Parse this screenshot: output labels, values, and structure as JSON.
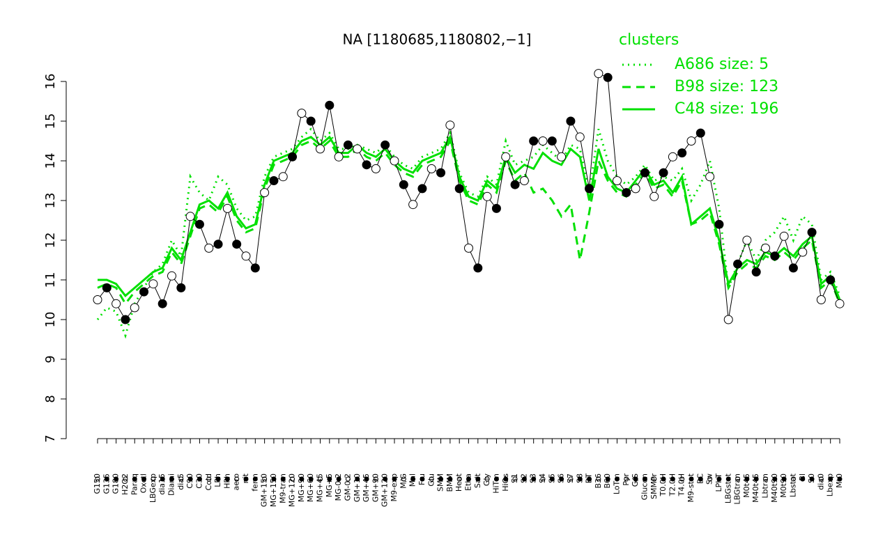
{
  "chart_data": {
    "type": "line",
    "title": "NA [1180685,1180802,−1]",
    "categories": [
      "G150",
      "G135",
      "G180",
      "H2O2",
      "Paraq",
      "Oxctl",
      "LBGexp",
      "dia15",
      "Diami",
      "dia5",
      "C90",
      "C30",
      "Cold",
      "LPh",
      "HPh",
      "aero",
      "nit",
      "ferm",
      "GM+150",
      "MG+150",
      "M9-tran",
      "MG+120",
      "MG+90",
      "MG+60",
      "MG+45",
      "MG+5",
      "MG-0.2",
      "GM-0.2",
      "GM+10",
      "GM+45",
      "GM+90",
      "GM+120",
      "M9-exp",
      "M/G",
      "Mal",
      "Fru",
      "Glu",
      "SMM",
      "BMM",
      "Heat",
      "Etha",
      "Salt",
      "Gly",
      "HiTm",
      "HiOs",
      "S1",
      "S2",
      "S3",
      "S4",
      "S5",
      "S6",
      "S7",
      "S8",
      "BT",
      "B36",
      "B60",
      "LoTm",
      "Pyr",
      "G/S",
      "Glucon",
      "SMMPr",
      "T0.0H",
      "T2.0H",
      "T4.0H",
      "M9-stat",
      "BC",
      "Sw",
      "LPhT",
      "LBGstat",
      "LBGtran",
      "M0t45",
      "M40t45",
      "Lbtran",
      "M40t90",
      "M0t90",
      "Lbstat",
      "Bl",
      "S0",
      "dia0",
      "Lbexp",
      "Mt0"
    ],
    "values": [
      10.5,
      10.8,
      10.4,
      10.0,
      10.3,
      10.7,
      10.9,
      10.4,
      11.1,
      10.8,
      12.6,
      12.4,
      11.8,
      11.9,
      12.8,
      11.9,
      11.6,
      11.3,
      13.2,
      13.5,
      13.6,
      14.1,
      15.2,
      15.0,
      14.3,
      15.4,
      14.1,
      14.4,
      14.3,
      13.9,
      13.8,
      14.4,
      14.0,
      13.4,
      12.9,
      13.3,
      13.8,
      13.7,
      14.9,
      13.3,
      11.8,
      11.3,
      13.1,
      12.8,
      14.1,
      13.4,
      13.5,
      14.5,
      14.5,
      14.5,
      14.1,
      15.0,
      14.6,
      13.3,
      16.2,
      16.1,
      13.5,
      13.2,
      13.3,
      13.7,
      13.1,
      13.7,
      14.1,
      14.2,
      14.5,
      14.7,
      13.6,
      12.4,
      10.0,
      11.4,
      12.0,
      11.2,
      11.8,
      11.6,
      12.1,
      11.3,
      11.7,
      12.2,
      10.5,
      11.0,
      10.4
    ],
    "legend_title": "clusters",
    "series": [
      {
        "name": "A686 size: 5",
        "color": "#00e000",
        "dash": "dotted",
        "values": [
          10.0,
          10.3,
          10.2,
          9.6,
          10.4,
          10.8,
          11.2,
          11.4,
          12.0,
          11.6,
          13.6,
          13.2,
          13.0,
          13.6,
          13.4,
          12.8,
          12.5,
          12.6,
          13.6,
          14.1,
          14.2,
          14.3,
          14.6,
          14.8,
          14.5,
          14.7,
          14.3,
          14.3,
          14.4,
          14.3,
          14.2,
          14.4,
          14.1,
          13.9,
          13.8,
          14.1,
          14.2,
          14.3,
          14.7,
          13.7,
          13.2,
          13.1,
          13.6,
          13.4,
          14.5,
          13.9,
          14.0,
          14.1,
          14.4,
          14.2,
          14.0,
          14.4,
          14.3,
          13.2,
          14.8,
          14.0,
          13.6,
          13.4,
          13.6,
          13.9,
          13.5,
          13.6,
          13.5,
          13.8,
          13.0,
          13.4,
          14.0,
          12.8,
          10.8,
          11.4,
          12.0,
          11.5,
          12.0,
          12.2,
          12.6,
          12.0,
          12.6,
          12.4,
          11.0,
          11.2,
          10.6
        ]
      },
      {
        "name": "B98 size: 123",
        "color": "#00e000",
        "dash": "dashed",
        "values": [
          10.8,
          10.9,
          10.8,
          10.4,
          10.7,
          10.9,
          11.1,
          11.2,
          11.7,
          11.4,
          12.1,
          12.8,
          12.9,
          12.7,
          13.1,
          12.5,
          12.2,
          12.3,
          13.3,
          13.9,
          14.0,
          14.1,
          14.4,
          14.5,
          14.3,
          14.5,
          14.1,
          14.1,
          14.3,
          14.1,
          14.0,
          14.2,
          13.9,
          13.7,
          13.6,
          13.9,
          14.0,
          14.1,
          14.5,
          13.5,
          13.0,
          12.9,
          13.4,
          13.2,
          14.0,
          13.5,
          13.7,
          13.2,
          13.3,
          13.0,
          12.6,
          12.9,
          11.5,
          12.7,
          14.0,
          13.5,
          13.2,
          13.1,
          13.4,
          13.7,
          13.3,
          13.4,
          13.1,
          13.5,
          12.4,
          12.5,
          12.7,
          11.9,
          10.8,
          11.2,
          11.4,
          11.3,
          11.6,
          11.5,
          11.7,
          11.5,
          11.8,
          12.0,
          10.8,
          11.0,
          10.4
        ]
      },
      {
        "name": "C48 size: 196",
        "color": "#00e000",
        "dash": "solid",
        "values": [
          11.0,
          11.0,
          10.9,
          10.6,
          10.8,
          11.0,
          11.2,
          11.3,
          11.8,
          11.5,
          12.2,
          12.9,
          13.0,
          12.8,
          13.2,
          12.6,
          12.3,
          12.4,
          13.4,
          14.0,
          14.1,
          14.2,
          14.5,
          14.6,
          14.4,
          14.6,
          14.2,
          14.2,
          14.4,
          14.2,
          14.1,
          14.3,
          14.0,
          13.8,
          13.7,
          14.0,
          14.1,
          14.2,
          14.6,
          13.6,
          13.1,
          13.0,
          13.5,
          13.3,
          14.1,
          13.7,
          13.9,
          13.8,
          14.2,
          14.0,
          13.9,
          14.3,
          14.1,
          13.0,
          14.3,
          13.6,
          13.3,
          13.2,
          13.5,
          13.8,
          13.4,
          13.5,
          13.2,
          13.6,
          12.4,
          12.6,
          12.8,
          12.0,
          10.9,
          11.3,
          11.5,
          11.4,
          11.7,
          11.6,
          11.8,
          11.6,
          11.9,
          12.1,
          10.9,
          11.1,
          10.5
        ]
      }
    ],
    "ylim": [
      7,
      16
    ],
    "yticks": [
      7,
      8,
      9,
      10,
      11,
      12,
      13,
      14,
      15,
      16
    ]
  }
}
